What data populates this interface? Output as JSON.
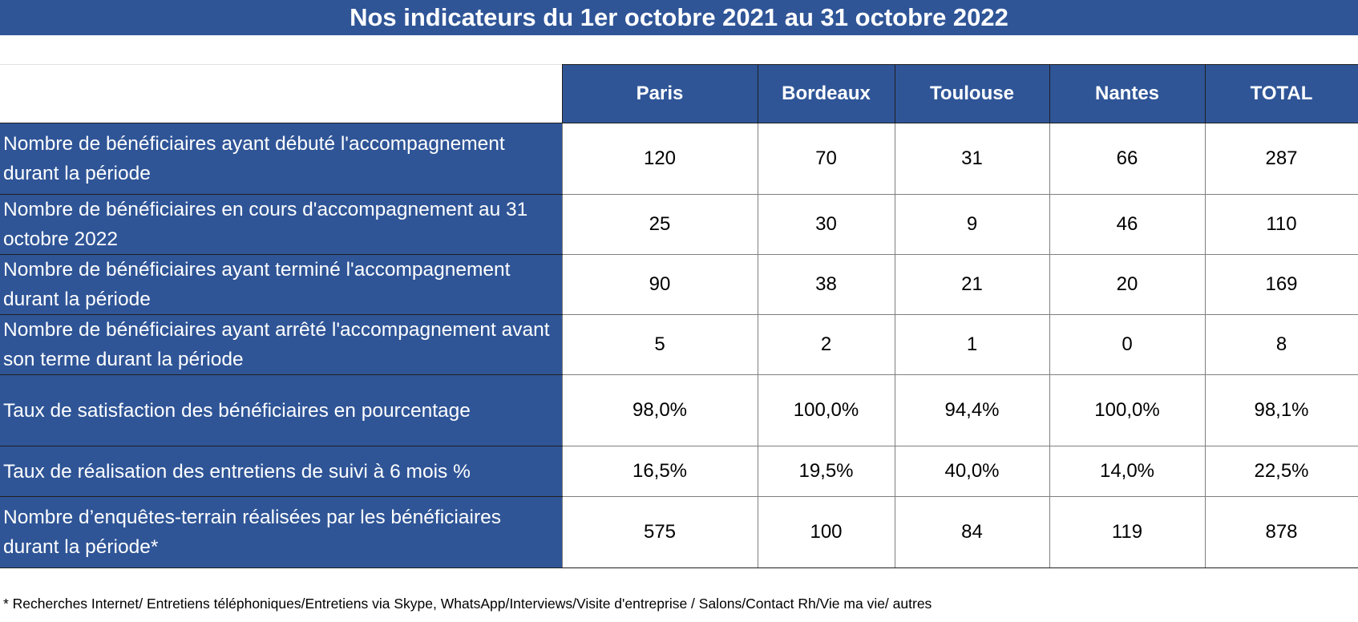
{
  "title": "Nos indicateurs du 1er octobre 2021 au 31 octobre 2022",
  "table": {
    "columns": [
      "Paris",
      "Bordeaux",
      "Toulouse",
      "Nantes",
      "TOTAL"
    ],
    "rows": [
      {
        "label": "Nombre de bénéficiaires ayant débuté l'accompagnement durant la période",
        "values": [
          "120",
          "70",
          "31",
          "66",
          "287"
        ]
      },
      {
        "label": "Nombre de bénéficiaires en cours d'accompagnement au 31 octobre 2022",
        "values": [
          "25",
          "30",
          "9",
          "46",
          "110"
        ]
      },
      {
        "label": "Nombre de bénéficiaires ayant terminé l'accompagnement durant la période",
        "values": [
          "90",
          "38",
          "21",
          "20",
          "169"
        ]
      },
      {
        "label": "Nombre de bénéficiaires ayant arrêté l'accompagnement avant son terme durant la période",
        "values": [
          "5",
          "2",
          "1",
          "0",
          "8"
        ]
      },
      {
        "label": "Taux de satisfaction des bénéficiaires en pourcentage",
        "values": [
          "98,0%",
          "100,0%",
          "94,4%",
          "100,0%",
          "98,1%"
        ]
      },
      {
        "label": "Taux de réalisation des entretiens de suivi à 6 mois  %",
        "values": [
          "16,5%",
          "19,5%",
          "40,0%",
          "14,0%",
          "22,5%"
        ]
      },
      {
        "label": "Nombre d’enquêtes-terrain réalisées par les bénéficiaires durant  la période*",
        "values": [
          "575",
          "100",
          "84",
          "119",
          "878"
        ]
      }
    ]
  },
  "footnote": "* Recherches Internet/ Entretiens téléphoniques/Entretiens via Skype, WhatsApp/Interviews/Visite d'entreprise / Salons/Contact Rh/Vie ma vie/ autres",
  "colors": {
    "header_blue": "#2f5597",
    "text_white": "#ffffff"
  }
}
